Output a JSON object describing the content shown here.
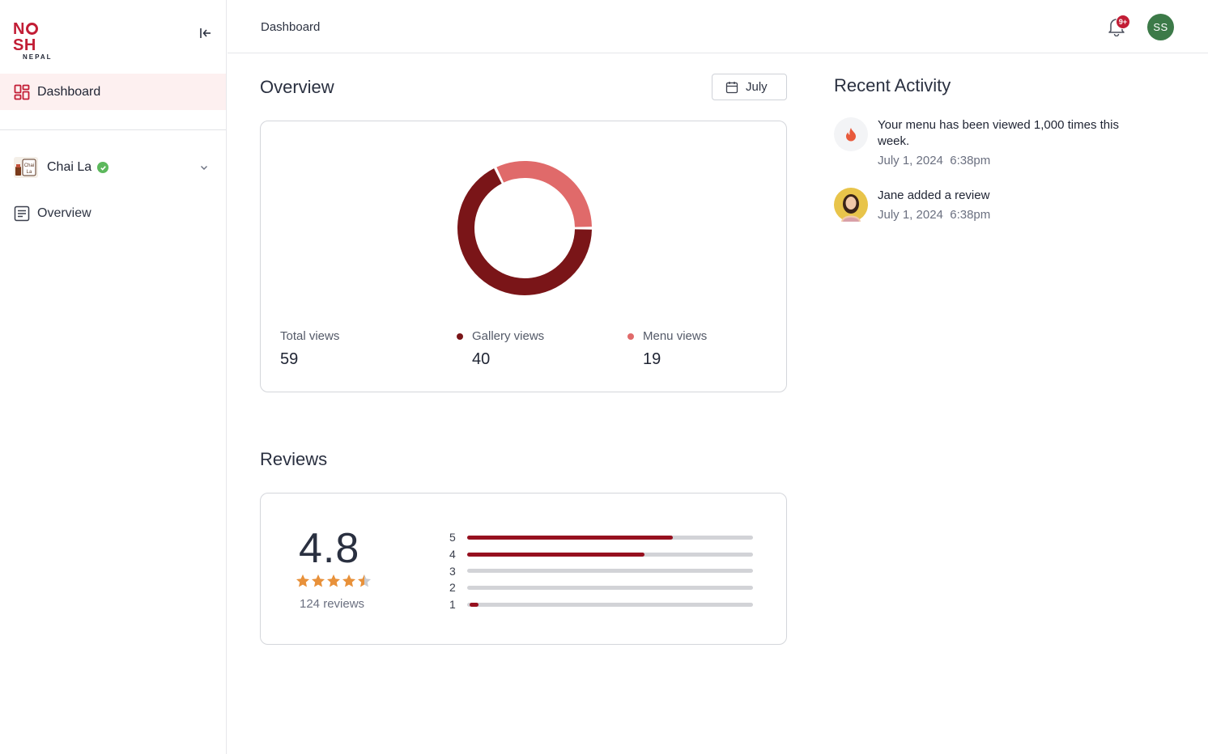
{
  "brand": {
    "name_prefix": "N",
    "name_suffix": "SH",
    "sub": "NEPAL"
  },
  "sidebar": {
    "dashboard_label": "Dashboard",
    "restaurant": {
      "name": "Chai La",
      "logo_text": "Chai La"
    },
    "overview_label": "Overview"
  },
  "topbar": {
    "breadcrumb": "Dashboard",
    "notifications_badge": "9+",
    "avatar_initials": "SS"
  },
  "overview": {
    "title": "Overview",
    "month": "July",
    "stats": [
      {
        "label": "Total views",
        "value": "59"
      },
      {
        "label": "Gallery views",
        "value": "40"
      },
      {
        "label": "Menu views",
        "value": "19"
      }
    ]
  },
  "chart_data": {
    "type": "pie",
    "variant": "donut",
    "categories": [
      "Gallery views",
      "Menu views"
    ],
    "values": [
      40,
      19
    ],
    "colors": [
      "#7a1518",
      "#e06a6a"
    ]
  },
  "reviews": {
    "title": "Reviews",
    "rating": "4.8",
    "stars": 4.5,
    "count_label": "124 reviews",
    "distribution": [
      {
        "stars": "5",
        "fraction": 0.72
      },
      {
        "stars": "4",
        "fraction": 0.62
      },
      {
        "stars": "3",
        "fraction": 0.0
      },
      {
        "stars": "2",
        "fraction": 0.0
      },
      {
        "stars": "1",
        "fraction": 0.03
      }
    ],
    "bar_color": "#96101f",
    "star_color": "#e8913a"
  },
  "activity": {
    "title": "Recent Activity",
    "items": [
      {
        "icon": "flame-icon",
        "message": "Your menu has been viewed 1,000 times this week.",
        "time": "July 1, 2024  6:38pm"
      },
      {
        "icon": "user-avatar",
        "message": "Jane added a review",
        "time": "July 1, 2024  6:38pm"
      }
    ]
  },
  "colors": {
    "brand": "#c21d35",
    "active_bg": "#fdf0f0",
    "avatar_bg": "#3c7a48"
  }
}
